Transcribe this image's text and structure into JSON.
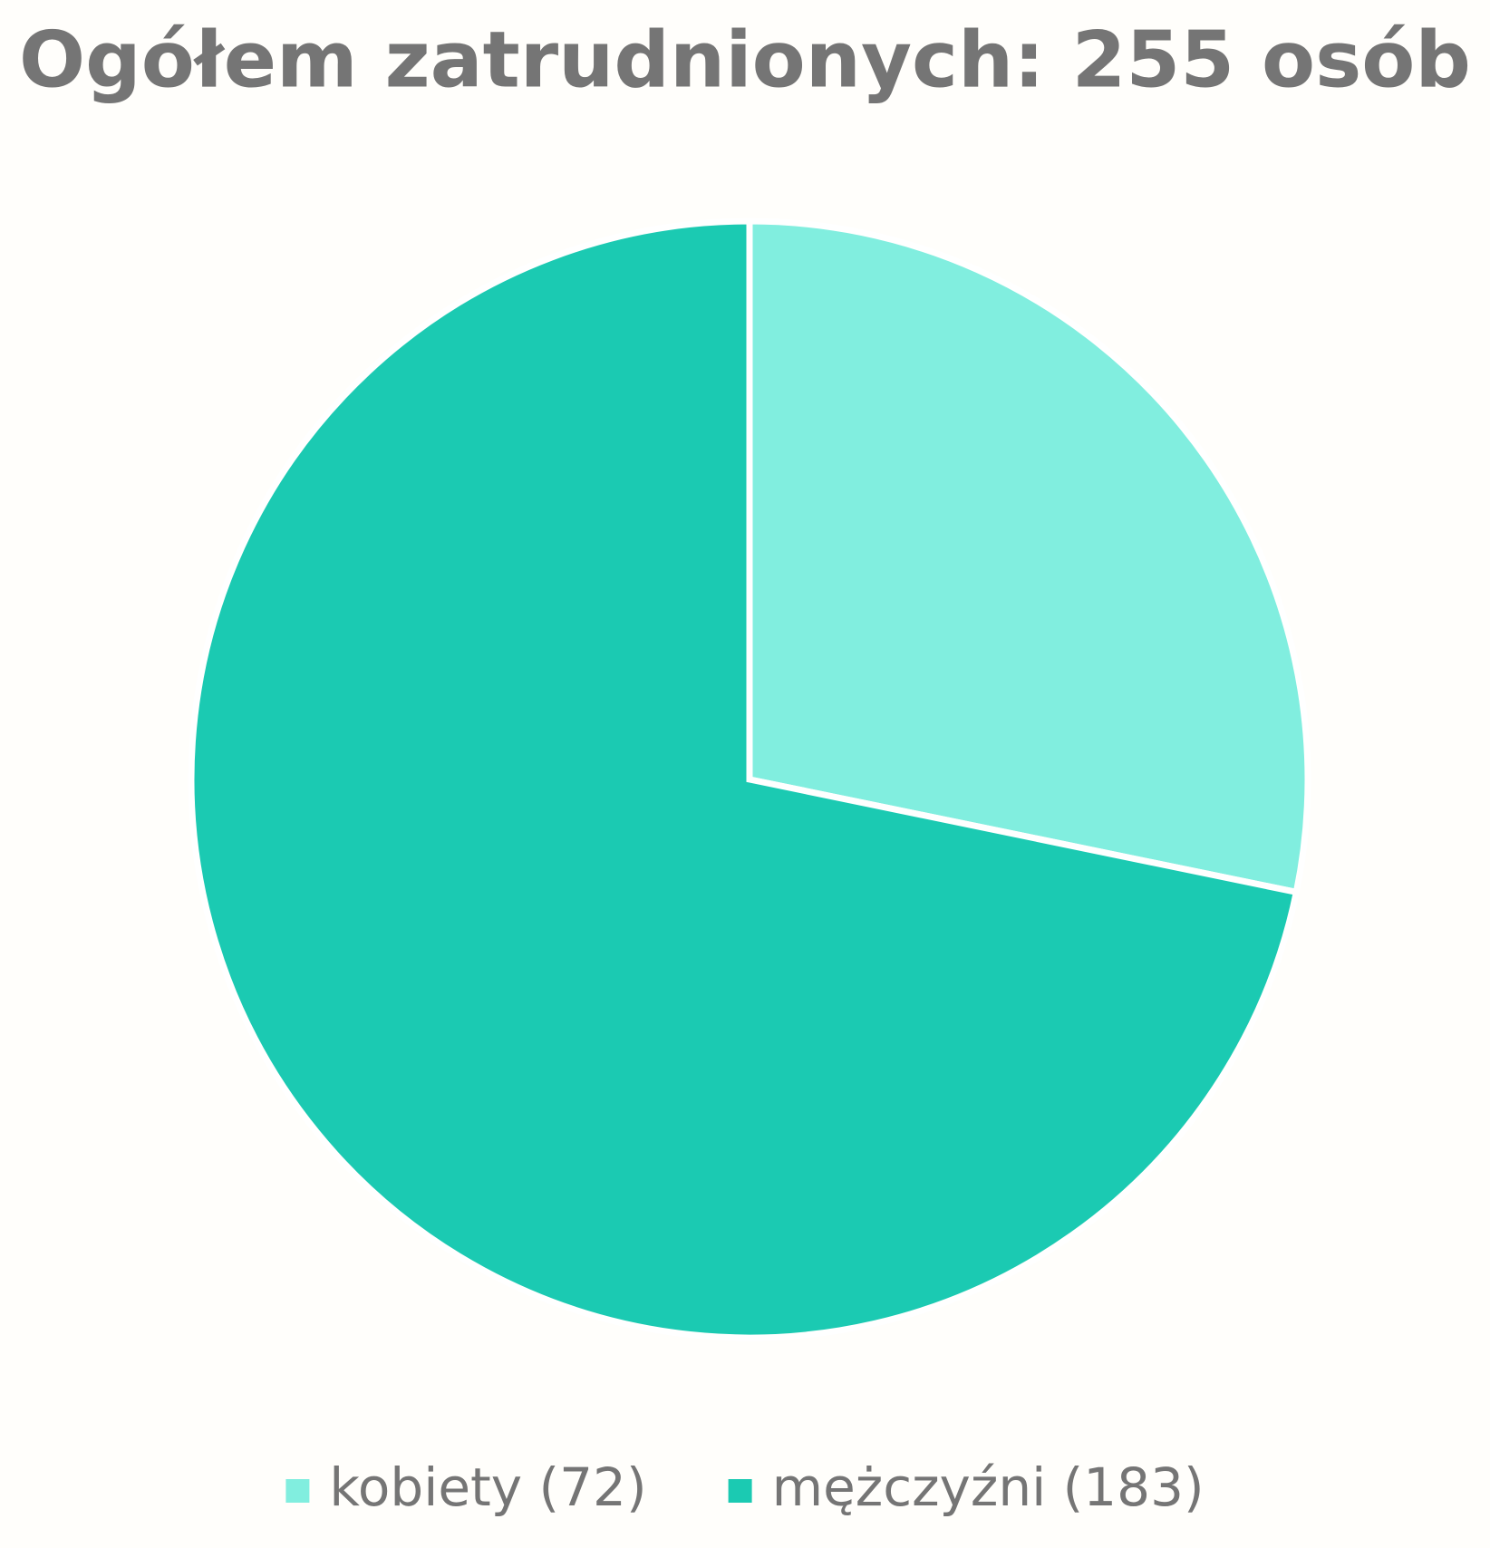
{
  "chart_data": {
    "type": "pie",
    "title": "Ogółem zatrudnionych: 255 osób",
    "categories": [
      "kobiety (72)",
      "mężczyźni (183)"
    ],
    "values": [
      72,
      183
    ],
    "colors": [
      "#81eedf",
      "#1bcab2"
    ],
    "legend": "bottom"
  }
}
